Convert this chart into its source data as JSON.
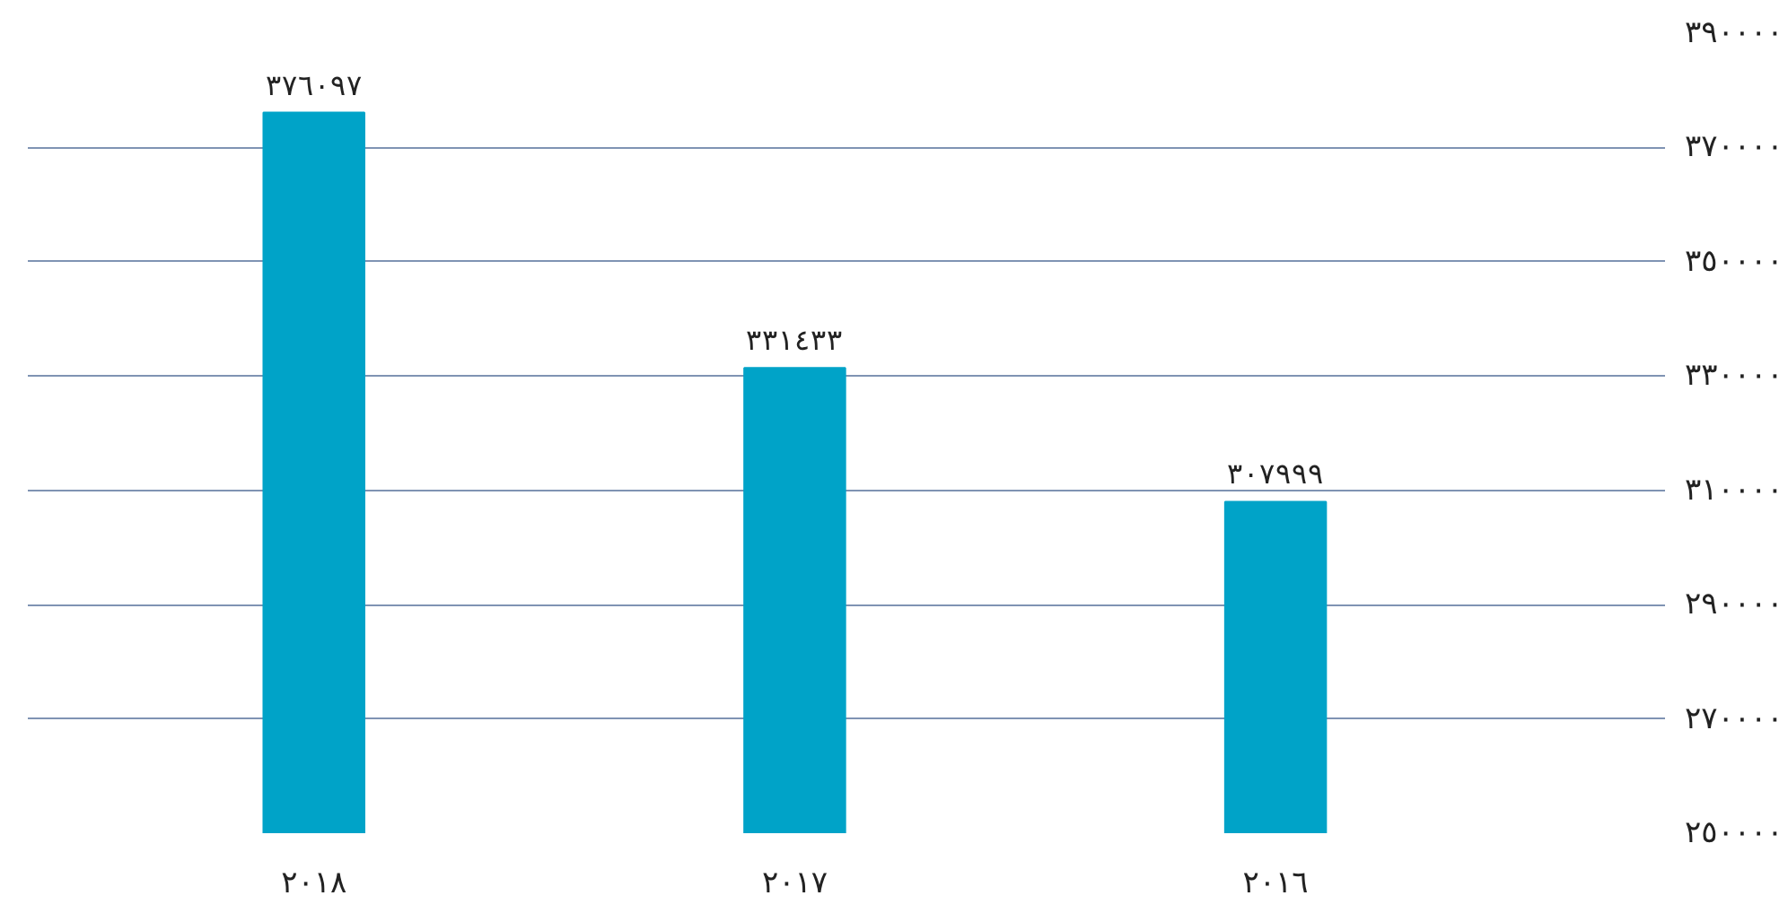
{
  "chart_data": {
    "type": "bar",
    "categories": [
      "٢٠١٨",
      "٢٠١٧",
      "٢٠١٦"
    ],
    "values": [
      376097,
      331433,
      307999
    ],
    "value_labels": [
      "٣٧٦٠٩٧",
      "٣٣١٤٣٣",
      "٣٠٧٩٩٩"
    ],
    "color": "#00a3c8",
    "ylim": [
      250000,
      390000
    ],
    "yticks": [
      {
        "value": 250000,
        "label": "٢٥٠٠٠٠"
      },
      {
        "value": 270000,
        "label": "٢٧٠٠٠٠"
      },
      {
        "value": 290000,
        "label": "٢٩٠٠٠٠"
      },
      {
        "value": 310000,
        "label": "٣١٠٠٠٠"
      },
      {
        "value": 330000,
        "label": "٣٣٠٠٠٠"
      },
      {
        "value": 350000,
        "label": "٣٥٠٠٠٠"
      },
      {
        "value": 370000,
        "label": "٣٧٠٠٠٠"
      },
      {
        "value": 390000,
        "label": "٣٩٠٠٠٠"
      }
    ],
    "grid": "y"
  }
}
